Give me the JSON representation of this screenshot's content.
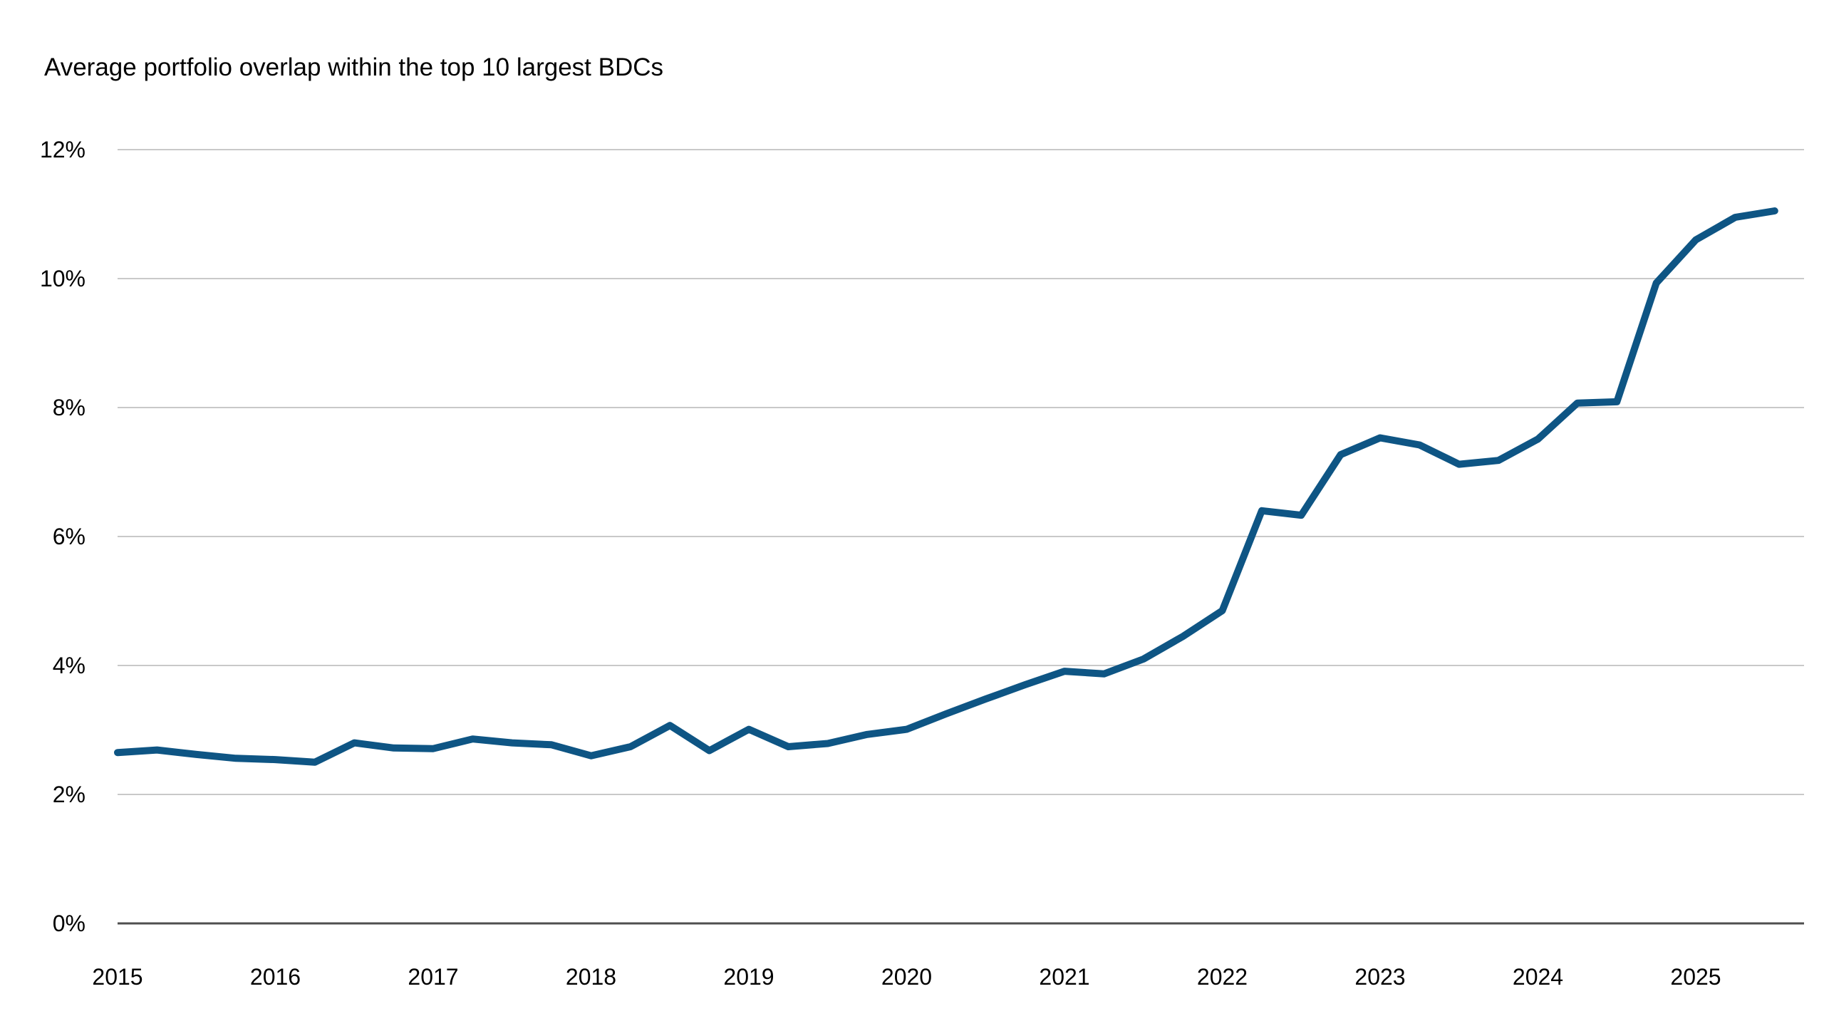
{
  "title": "Average portfolio overlap within the top 10 largest BDCs",
  "chart_data": {
    "type": "line",
    "title": "Average portfolio overlap within the top 10 largest BDCs",
    "xlabel": "",
    "ylabel": "",
    "x_start_year": 2015,
    "x_period": "quarterly",
    "x_tick_years": [
      2015,
      2016,
      2017,
      2018,
      2019,
      2020,
      2021,
      2022,
      2023,
      2024,
      2025
    ],
    "y_ticks": [
      {
        "value": 0,
        "label": "0%"
      },
      {
        "value": 2,
        "label": "2%"
      },
      {
        "value": 4,
        "label": "4%"
      },
      {
        "value": 6,
        "label": "6%"
      },
      {
        "value": 8,
        "label": "8%"
      },
      {
        "value": 10,
        "label": "10%"
      },
      {
        "value": 12,
        "label": "12%"
      }
    ],
    "ylim": [
      0,
      12
    ],
    "grid": "horizontal",
    "legend": "none",
    "series": [
      {
        "name": "Average portfolio overlap within the top 10 largest BDCs",
        "color": "#0e5584",
        "values": [
          2.65,
          2.69,
          2.62,
          2.56,
          2.54,
          2.5,
          2.8,
          2.72,
          2.71,
          2.86,
          2.8,
          2.77,
          2.6,
          2.74,
          3.07,
          2.68,
          3.01,
          2.74,
          2.79,
          2.93,
          3.01,
          3.25,
          3.48,
          3.7,
          3.91,
          3.87,
          4.1,
          4.45,
          4.85,
          6.4,
          6.33,
          7.27,
          7.53,
          7.42,
          7.12,
          7.18,
          7.51,
          8.07,
          8.09,
          9.93,
          10.6,
          10.95,
          11.05
        ]
      }
    ],
    "colors": {
      "line": "#0e5584",
      "gridline": "#c9c9c9",
      "baseline": "#4f4f4f",
      "text": "#000000",
      "background": "#ffffff"
    }
  }
}
